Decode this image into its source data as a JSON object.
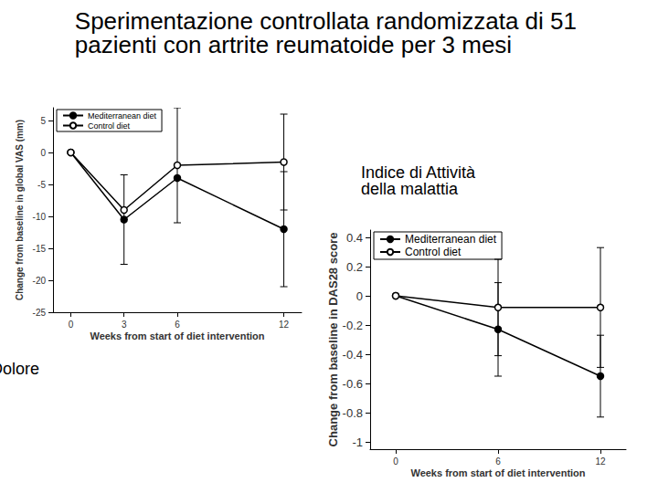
{
  "title": "Sperimentazione controllata randomizzata di 51 pazienti con artrite reumatoide per 3 mesi",
  "chart_data": [
    {
      "type": "line",
      "annotation": "Dolore",
      "x_label": "Weeks from start of diet intervention",
      "y_label": "Change from baseline in global VAS (mm)",
      "x": [
        0,
        3,
        6,
        12
      ],
      "xlim": [
        -1,
        13
      ],
      "xticks": [
        0,
        3,
        6,
        12
      ],
      "ylim": [
        -25,
        7
      ],
      "yticks": [
        -25,
        -20,
        -15,
        -10,
        -5,
        0,
        5
      ],
      "grid": false,
      "legend": "upper left",
      "series": [
        {
          "name": "Mediterranean diet",
          "color": "#000000",
          "marker": "filled",
          "values": [
            0,
            -10.5,
            -4,
            -12
          ],
          "errors": [
            null,
            7,
            null,
            9
          ]
        },
        {
          "name": "Control diet",
          "color": "#000000",
          "marker": "open",
          "values": [
            0,
            -9,
            -2,
            -1.5
          ],
          "errors": [
            null,
            null,
            9,
            7.5
          ]
        }
      ]
    },
    {
      "type": "line",
      "annotation": "Indice di Attività della malattia",
      "x_label": "Weeks from start of diet intervention",
      "y_label": "Change from baseline in DAS28 score",
      "x": [
        0,
        6,
        12
      ],
      "xlim": [
        -1.5,
        13.5
      ],
      "xticks": [
        0,
        6,
        12
      ],
      "ylim": [
        -1.05,
        0.45
      ],
      "yticks": [
        -1,
        -0.8,
        -0.6,
        -0.4,
        -0.2,
        0,
        0.2,
        0.4
      ],
      "grid": false,
      "legend": "upper left",
      "series": [
        {
          "name": "Mediterranean diet",
          "color": "#000000",
          "marker": "filled",
          "values": [
            0,
            -0.23,
            -0.55
          ],
          "errors": [
            null,
            0.32,
            0.28
          ]
        },
        {
          "name": "Control diet",
          "color": "#000000",
          "marker": "open",
          "values": [
            0,
            -0.08,
            -0.08
          ],
          "errors": [
            null,
            0.33,
            0.41
          ]
        }
      ]
    }
  ]
}
